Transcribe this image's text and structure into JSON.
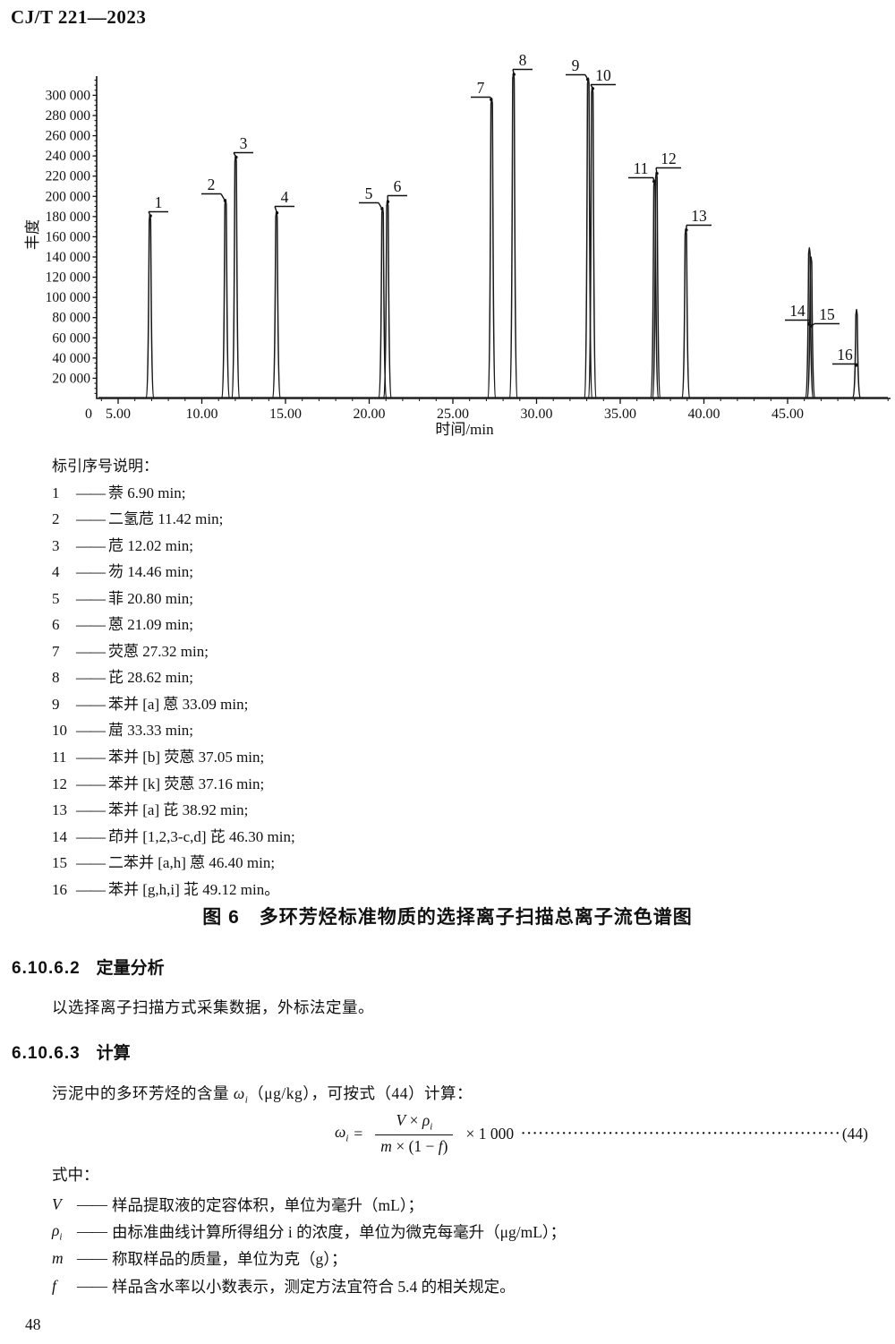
{
  "page": {
    "header": "CJ/T 221—2023",
    "page_number": "48"
  },
  "chart_data": {
    "type": "line",
    "subtype": "gc-ms-total-ion-chromatogram",
    "title": "",
    "xlabel": "时间/min",
    "ylabel": "丰度",
    "xlim": [
      3.7,
      51.2
    ],
    "ylim": [
      0,
      320000
    ],
    "x_origin_label": "0",
    "x_ticks": [
      5,
      10,
      15,
      20,
      25,
      30,
      35,
      40,
      45
    ],
    "x_tick_labels": [
      "5.00",
      "10.00",
      "15.00",
      "20.00",
      "25.00",
      "30.00",
      "35.00",
      "40.00",
      "45.00"
    ],
    "y_ticks": [
      20000,
      40000,
      60000,
      80000,
      100000,
      120000,
      140000,
      160000,
      180000,
      200000,
      220000,
      240000,
      260000,
      280000,
      300000
    ],
    "y_tick_labels": [
      "20 000",
      "40 000",
      "60 000",
      "80 000",
      "100 000",
      "120 000",
      "140 000",
      "160 000",
      "180 000",
      "200 000",
      "220 000",
      "240 000",
      "260 000",
      "280 000",
      "300 000"
    ],
    "grid": false,
    "peaks": [
      {
        "id": "1",
        "compound": "萘",
        "rt_min": 6.9,
        "abundance": 182000
      },
      {
        "id": "2",
        "compound": "二氢苊",
        "rt_min": 11.42,
        "abundance": 197000
      },
      {
        "id": "3",
        "compound": "苊",
        "rt_min": 12.02,
        "abundance": 240000
      },
      {
        "id": "4",
        "compound": "芴",
        "rt_min": 14.46,
        "abundance": 185000
      },
      {
        "id": "5",
        "compound": "菲",
        "rt_min": 20.8,
        "abundance": 189000
      },
      {
        "id": "6",
        "compound": "蒽",
        "rt_min": 21.09,
        "abundance": 196000
      },
      {
        "id": "7",
        "compound": "荧蒽",
        "rt_min": 27.32,
        "abundance": 297000
      },
      {
        "id": "8",
        "compound": "芘",
        "rt_min": 28.62,
        "abundance": 322000
      },
      {
        "id": "9",
        "compound": "苯并[a]蒽",
        "rt_min": 33.09,
        "abundance": 317000
      },
      {
        "id": "10",
        "compound": "䓛",
        "rt_min": 33.33,
        "abundance": 308000
      },
      {
        "id": "11",
        "compound": "苯并[b]荧蒽",
        "rt_min": 37.05,
        "abundance": 216000
      },
      {
        "id": "12",
        "compound": "苯并[k]荧蒽",
        "rt_min": 37.16,
        "abundance": 224000
      },
      {
        "id": "13",
        "compound": "苯并[a]芘",
        "rt_min": 38.92,
        "abundance": 168000
      },
      {
        "id": "14",
        "compound": "茚并[1,2,3-c,d]芘",
        "rt_min": 46.3,
        "abundance": 149000
      },
      {
        "id": "15",
        "compound": "二苯并[a,h]蒽",
        "rt_min": 46.4,
        "abundance": 140000
      },
      {
        "id": "16",
        "compound": "苯并[g,h,i]苝",
        "rt_min": 49.12,
        "abundance": 88000
      }
    ]
  },
  "legend": {
    "title": "标引序号说明：",
    "dash": "——",
    "items": [
      {
        "no": "1",
        "text": "萘 6.90 min;"
      },
      {
        "no": "2",
        "text": "二氢苊 11.42 min;"
      },
      {
        "no": "3",
        "text": "苊 12.02 min;"
      },
      {
        "no": "4",
        "text": "芴 14.46 min;"
      },
      {
        "no": "5",
        "text": "菲 20.80 min;"
      },
      {
        "no": "6",
        "text": "蒽 21.09 min;"
      },
      {
        "no": "7",
        "text": "荧蒽 27.32 min;"
      },
      {
        "no": "8",
        "text": "芘 28.62 min;"
      },
      {
        "no": "9",
        "text": "苯并 [a] 蒽 33.09 min;"
      },
      {
        "no": "10",
        "text": "䓛 33.33 min;"
      },
      {
        "no": "11",
        "text": "苯并 [b] 荧蒽 37.05 min;"
      },
      {
        "no": "12",
        "text": "苯并 [k] 荧蒽 37.16 min;"
      },
      {
        "no": "13",
        "text": "苯并 [a] 芘 38.92 min;"
      },
      {
        "no": "14",
        "text": "茚并 [1,2,3-c,d] 芘 46.30 min;"
      },
      {
        "no": "15",
        "text": "二苯并 [a,h] 蒽 46.40 min;"
      },
      {
        "no": "16",
        "text": "苯并 [g,h,i] 苝 49.12 min。"
      }
    ]
  },
  "caption": "图 6　多环芳烃标准物质的选择离子扫描总离子流色谱图",
  "sections": {
    "s1": {
      "number": "6.10.6.2",
      "title": "定量分析",
      "body": "以选择离子扫描方式采集数据，外标法定量。"
    },
    "s2": {
      "number": "6.10.6.3",
      "title": "计算",
      "body_pre": "污泥中的多环芳烃的含量 ",
      "body_var": "ω",
      "body_sub": "i",
      "body_post": "（μg/kg），可按式（44）计算："
    }
  },
  "formula": {
    "lhs_var": "ω",
    "lhs_sub": "i",
    "equals": "=",
    "numerator": {
      "v": "V",
      "times": "×",
      "rho": "ρ",
      "rho_sub": "i"
    },
    "denominator": {
      "m": "m",
      "times": "×",
      "open": "(1 − ",
      "f": "f",
      "close": ")"
    },
    "multiplier": "× 1 000",
    "dots": "·······································································",
    "number": "(44)",
    "where_label": "式中：",
    "def_dash": "——",
    "definitions": [
      {
        "symbol": "V",
        "sub": "",
        "desc": "样品提取液的定容体积，单位为毫升（mL）；"
      },
      {
        "symbol": "ρ",
        "sub": "i",
        "desc": "由标准曲线计算所得组分 i 的浓度，单位为微克每毫升（μg/mL）；"
      },
      {
        "symbol": "m",
        "sub": "",
        "desc": "称取样品的质量，单位为克（g）；"
      },
      {
        "symbol": "f",
        "sub": "",
        "desc": "样品含水率以小数表示，测定方法宜符合 5.4 的相关规定。"
      }
    ]
  }
}
